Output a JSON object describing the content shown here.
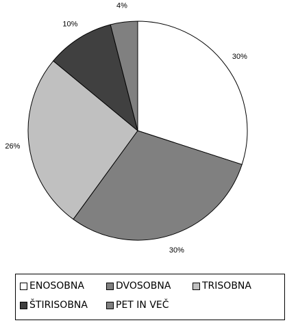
{
  "chart_data": {
    "type": "pie",
    "categories": [
      "ENOSOBNA",
      "DVOSOBNA",
      "TRISOBNA",
      "ŠTIRISOBNA",
      "PET IN VEČ"
    ],
    "values": [
      30,
      30,
      26,
      10,
      4
    ],
    "value_labels": [
      "30%",
      "30%",
      "26%",
      "10%",
      "4%"
    ],
    "colors": [
      "#ffffff",
      "#808080",
      "#c0c0c0",
      "#404040",
      "#808080"
    ],
    "legend": "bottom"
  }
}
